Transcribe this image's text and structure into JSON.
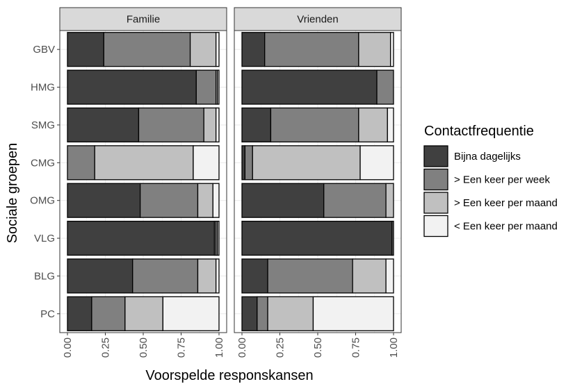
{
  "chart_data": {
    "type": "bar",
    "orientation": "horizontal",
    "stacked": true,
    "xlabel": "Voorspelde responskansen",
    "ylabel": "Sociale groepen",
    "xlim": [
      0,
      1
    ],
    "x_ticks": [
      "0.00",
      "0.25",
      "0.50",
      "0.75",
      "1.00"
    ],
    "categories": [
      "GBV",
      "HMG",
      "SMG",
      "CMG",
      "OMG",
      "VLG",
      "BLG",
      "PC"
    ],
    "legend": {
      "title": "Contactfrequentie",
      "position": "right",
      "entries": [
        "Bijna dagelijks",
        "> Een keer per week",
        "> Een keer per maand",
        "< Een keer per maand"
      ]
    },
    "colors": {
      "Bijna dagelijks": "#404040",
      "> Een keer per week": "#808080",
      "> Een keer per maand": "#c0c0c0",
      "< Een keer per maand": "#f2f2f2"
    },
    "grid": true,
    "panels": [
      {
        "title": "Familie",
        "series": [
          {
            "name": "Bijna dagelijks",
            "values": [
              0.24,
              0.85,
              0.47,
              0.0,
              0.48,
              0.97,
              0.43,
              0.16
            ]
          },
          {
            "name": "> Een keer per week",
            "values": [
              0.57,
              0.13,
              0.43,
              0.18,
              0.38,
              0.01,
              0.43,
              0.22
            ]
          },
          {
            "name": "> Een keer per maand",
            "values": [
              0.17,
              0.01,
              0.08,
              0.65,
              0.1,
              0.01,
              0.12,
              0.25
            ]
          },
          {
            "name": "< Een keer per maand",
            "values": [
              0.02,
              0.01,
              0.02,
              0.17,
              0.04,
              0.01,
              0.02,
              0.37
            ]
          }
        ]
      },
      {
        "title": "Vrienden",
        "series": [
          {
            "name": "Bijna dagelijks",
            "values": [
              0.15,
              0.89,
              0.19,
              0.02,
              0.54,
              0.99,
              0.17,
              0.1
            ]
          },
          {
            "name": "> Een keer per week",
            "values": [
              0.62,
              0.11,
              0.58,
              0.05,
              0.41,
              0.01,
              0.56,
              0.07
            ]
          },
          {
            "name": "> Een keer per maand",
            "values": [
              0.21,
              0.0,
              0.19,
              0.71,
              0.05,
              0.0,
              0.22,
              0.3
            ]
          },
          {
            "name": "< Een keer per maand",
            "values": [
              0.02,
              0.0,
              0.04,
              0.22,
              0.0,
              0.0,
              0.05,
              0.53
            ]
          }
        ]
      }
    ]
  }
}
